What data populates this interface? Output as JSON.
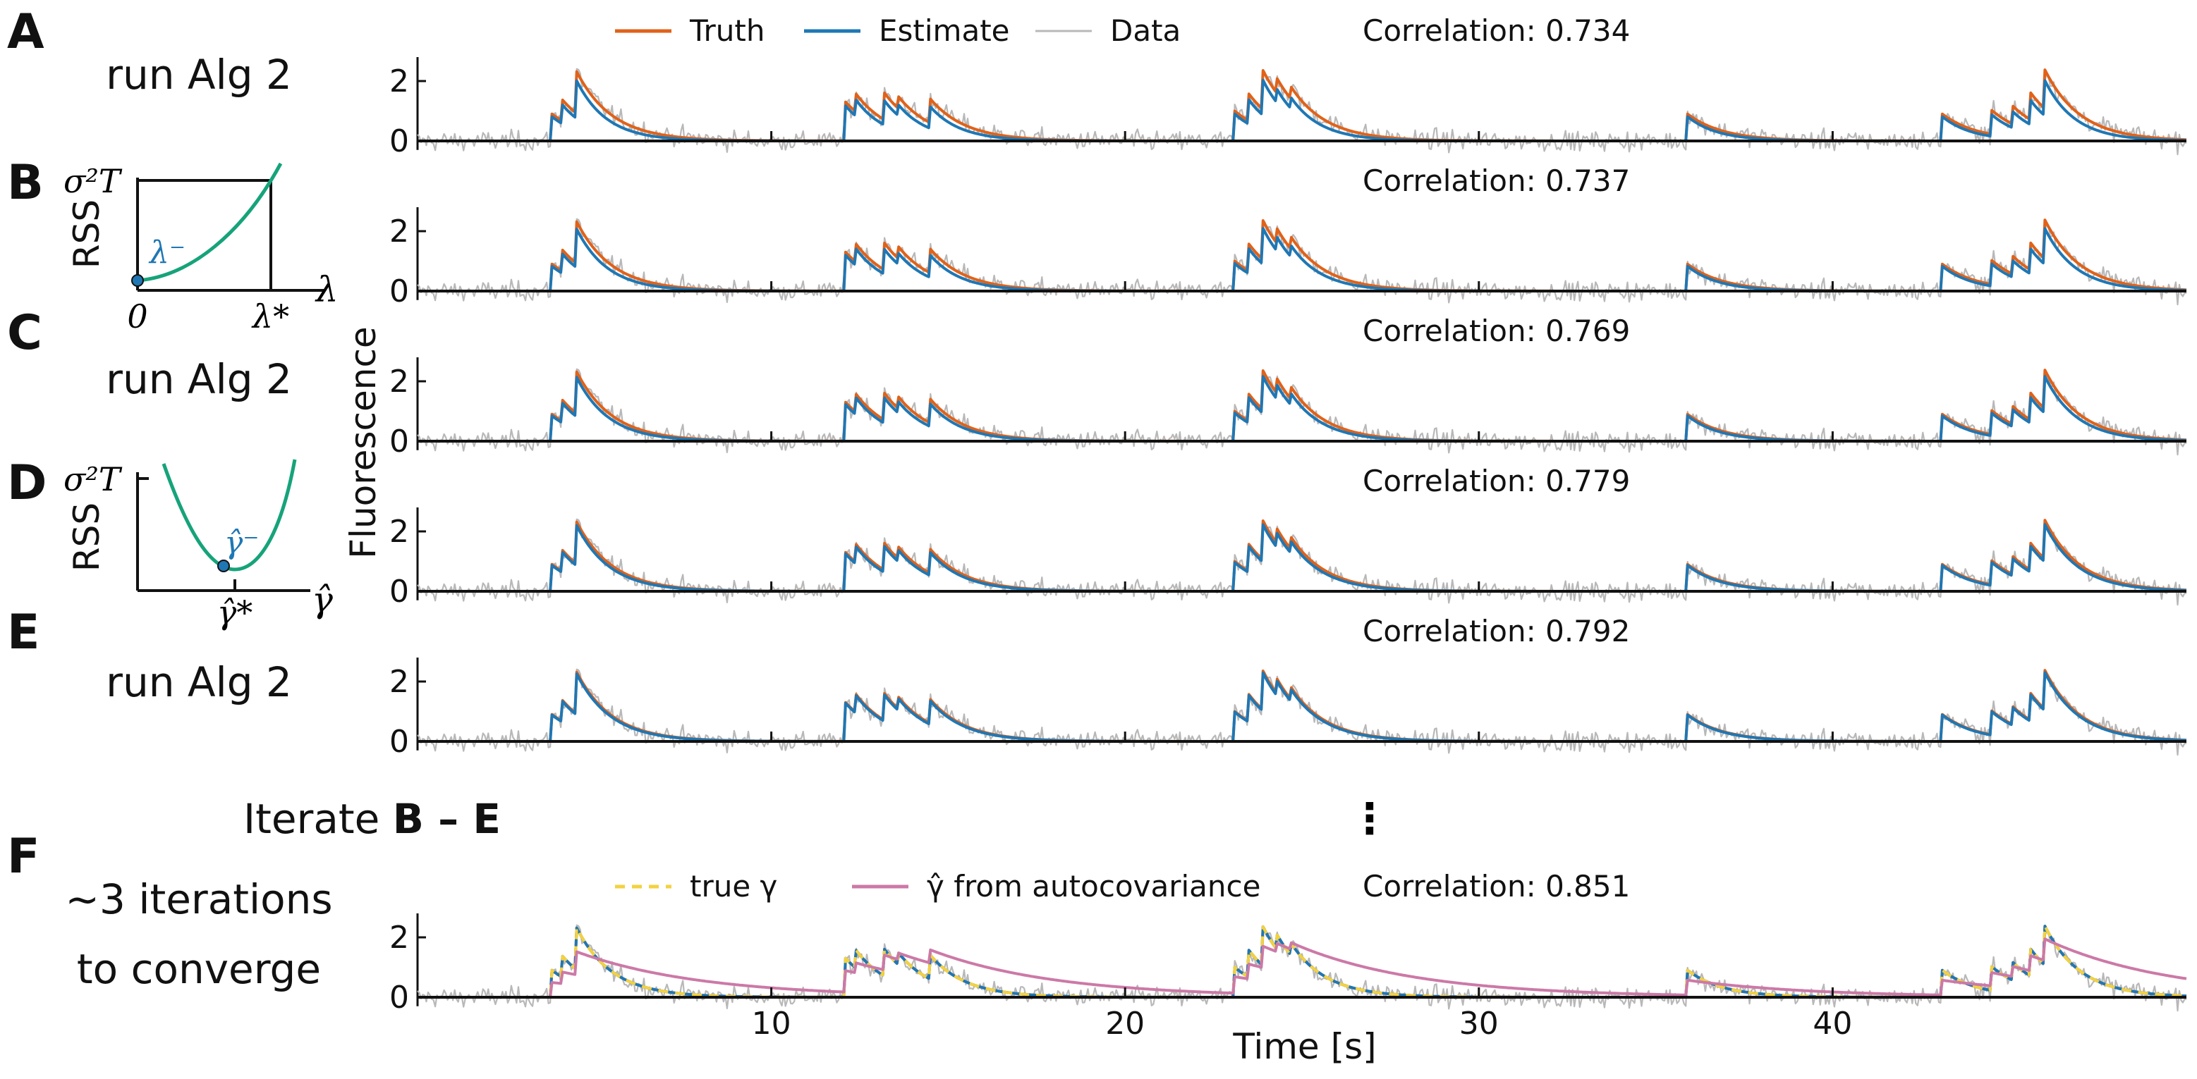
{
  "panels": [
    {
      "letter": "A",
      "step": "run Alg 2",
      "correlation": "Correlation: 0.734"
    },
    {
      "letter": "B",
      "correlation": "Correlation: 0.737"
    },
    {
      "letter": "C",
      "step": "run Alg 2",
      "correlation": "Correlation: 0.769"
    },
    {
      "letter": "D",
      "correlation": "Correlation: 0.779"
    },
    {
      "letter": "E",
      "step": "run Alg 2",
      "correlation": "Correlation: 0.792"
    },
    {
      "letter": "F",
      "step_line1": "∼3 iterations",
      "step_line2": "to converge",
      "correlation": "Correlation: 0.851"
    }
  ],
  "iterate": {
    "prefix": "Iterate ",
    "range": "B – E",
    "ellipsis": "⋮"
  },
  "inset_b": {
    "ylabel": "RSS",
    "ytick": "σ²T",
    "xtick0": "0",
    "xtick1": "λ*",
    "xlabel": "λ",
    "point_label": "λ⁻"
  },
  "inset_d": {
    "ylabel": "RSS",
    "ytick": "σ²T",
    "xtick": "γ̂*",
    "xlabel": "γ̂",
    "point_label": "γ̂⁻"
  },
  "legend_top": [
    {
      "label": "Truth",
      "color": "#e0621a"
    },
    {
      "label": "Estimate",
      "color": "#1f77b4"
    },
    {
      "label": "Data",
      "color": "#b8b8b8"
    }
  ],
  "legend_bottom": [
    {
      "label": "true γ",
      "color": "#f3d23f"
    },
    {
      "label": "γ̂ from autocovariance",
      "color": "#cc79a7"
    }
  ],
  "colors": {
    "truth": "#e0621a",
    "estimate": "#1f77b4",
    "data": "#b8b8b8",
    "true_gamma": "#f3d23f",
    "autocov": "#cc79a7",
    "rss_curve": "#16a37a"
  },
  "chart_data": {
    "type": "line",
    "xlabel": "Time [s]",
    "ylabel": "Fluorescence",
    "xlim": [
      0,
      50
    ],
    "ylim": [
      -0.3,
      2.8
    ],
    "xticks": [
      10,
      20,
      30,
      40
    ],
    "yticks": [
      0,
      2
    ],
    "spike_times": [
      3.8,
      4.1,
      4.5,
      12.1,
      12.4,
      13.2,
      13.6,
      14.5,
      23.1,
      23.5,
      23.9,
      24.3,
      24.7,
      35.9,
      43.1,
      44.5,
      45.1,
      45.6,
      46.0
    ],
    "spike_amplitudes": [
      0.9,
      0.7,
      1.4,
      1.3,
      0.6,
      0.9,
      0.4,
      0.8,
      1.0,
      0.9,
      1.3,
      0.5,
      0.4,
      0.9,
      0.9,
      0.8,
      0.6,
      0.9,
      1.3
    ],
    "decay_time_constant_s": 1.0,
    "noise_sd": 0.3,
    "series": [
      {
        "name": "Truth"
      },
      {
        "name": "Estimate"
      },
      {
        "name": "Data"
      },
      {
        "name": "true γ"
      },
      {
        "name": "γ̂ from autocovariance",
        "decay_time_constant_s": 3.5
      }
    ]
  }
}
